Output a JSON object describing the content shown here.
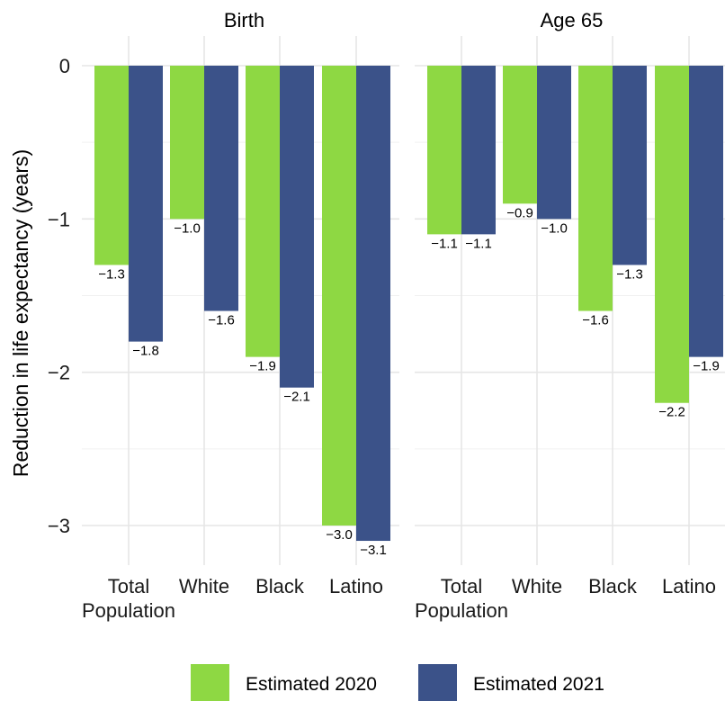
{
  "chart_data": {
    "type": "bar",
    "ylabel": "Reduction in life expectancy (years)",
    "ylim": [
      -3.25,
      0
    ],
    "yticks": [
      0,
      -1,
      -2,
      -3
    ],
    "ytick_labels": [
      "0",
      "−1",
      "−2",
      "−3"
    ],
    "grid": true,
    "legend_position": "bottom",
    "categories": [
      "Total\nPopulation",
      "White",
      "Black",
      "Latino"
    ],
    "facets": [
      {
        "title": "Birth",
        "series": [
          {
            "name": "Estimated 2020",
            "color": "#8ed843",
            "values": [
              -1.3,
              -1.0,
              -1.9,
              -3.0
            ],
            "labels": [
              "−1.3",
              "−1.0",
              "−1.9",
              "−3.0"
            ]
          },
          {
            "name": "Estimated 2021",
            "color": "#3b5289",
            "values": [
              -1.8,
              -1.6,
              -2.1,
              -3.1
            ],
            "labels": [
              "−1.8",
              "−1.6",
              "−2.1",
              "−3.1"
            ]
          }
        ]
      },
      {
        "title": "Age 65",
        "series": [
          {
            "name": "Estimated 2020",
            "color": "#8ed843",
            "values": [
              -1.1,
              -0.9,
              -1.6,
              -2.2
            ],
            "labels": [
              "−1.1",
              "−0.9",
              "−1.6",
              "−2.2"
            ]
          },
          {
            "name": "Estimated 2021",
            "color": "#3b5289",
            "values": [
              -1.1,
              -1.0,
              -1.3,
              -1.9
            ],
            "labels": [
              "−1.1",
              "−1.0",
              "−1.3",
              "−1.9"
            ]
          }
        ]
      }
    ],
    "legend": [
      {
        "label": "Estimated 2020",
        "color": "#8ed843"
      },
      {
        "label": "Estimated 2021",
        "color": "#3b5289"
      }
    ]
  }
}
